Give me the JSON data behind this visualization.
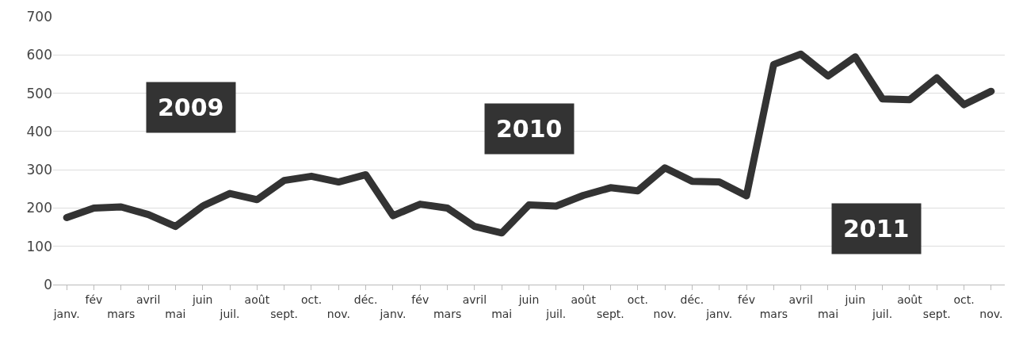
{
  "chart_data": {
    "type": "line",
    "categories": [
      "janv.",
      "fév",
      "mars",
      "avril",
      "mai",
      "juin",
      "juil.",
      "août",
      "sept.",
      "oct.",
      "nov.",
      "déc.",
      "janv.",
      "fév",
      "mars",
      "avril",
      "mai",
      "juin",
      "juil.",
      "août",
      "sept.",
      "oct.",
      "nov.",
      "déc.",
      "janv.",
      "fév",
      "mars",
      "avril",
      "mai",
      "juin",
      "juil.",
      "août",
      "sept.",
      "oct.",
      "nov."
    ],
    "series": [
      {
        "color": "#333333",
        "values": [
          175,
          200,
          203,
          183,
          152,
          205,
          238,
          222,
          272,
          283,
          268,
          287,
          180,
          210,
          200,
          152,
          135,
          208,
          205,
          233,
          253,
          245,
          305,
          270,
          268,
          232,
          575,
          602,
          545,
          595,
          485,
          483,
          540,
          470,
          505
        ]
      }
    ],
    "ylim": [
      0,
      700
    ],
    "yticks": [
      0,
      100,
      200,
      300,
      400,
      500,
      600,
      700
    ],
    "grid": "y",
    "marker": "none",
    "line_style": "solid",
    "annotations": [
      "2009",
      "2010",
      "2011"
    ]
  }
}
